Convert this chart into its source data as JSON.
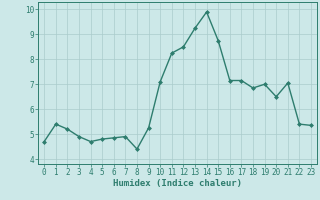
{
  "x": [
    0,
    1,
    2,
    3,
    4,
    5,
    6,
    7,
    8,
    9,
    10,
    11,
    12,
    13,
    14,
    15,
    16,
    17,
    18,
    19,
    20,
    21,
    22,
    23
  ],
  "y": [
    4.7,
    5.4,
    5.2,
    4.9,
    4.7,
    4.8,
    4.85,
    4.9,
    4.4,
    5.25,
    7.1,
    8.25,
    8.5,
    9.25,
    9.9,
    8.75,
    7.15,
    7.15,
    6.85,
    7.0,
    6.5,
    7.05,
    5.4,
    5.35
  ],
  "line_color": "#2e7d6e",
  "marker": "D",
  "markersize": 2.0,
  "linewidth": 1.0,
  "xlabel": "Humidex (Indice chaleur)",
  "xlim": [
    -0.5,
    23.5
  ],
  "ylim": [
    3.8,
    10.3
  ],
  "yticks": [
    4,
    5,
    6,
    7,
    8,
    9,
    10
  ],
  "xticks": [
    0,
    1,
    2,
    3,
    4,
    5,
    6,
    7,
    8,
    9,
    10,
    11,
    12,
    13,
    14,
    15,
    16,
    17,
    18,
    19,
    20,
    21,
    22,
    23
  ],
  "bg_color": "#cce8e8",
  "grid_color": "#aacccc",
  "spine_color": "#2e7d6e",
  "tick_color": "#2e7d6e",
  "label_color": "#2e7d6e",
  "xlabel_fontsize": 6.5,
  "tick_fontsize": 5.5
}
